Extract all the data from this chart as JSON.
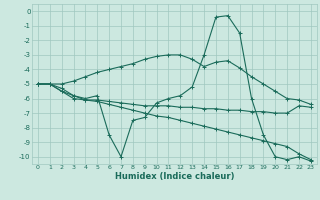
{
  "xlabel": "Humidex (Indice chaleur)",
  "background_color": "#cce8e0",
  "grid_color": "#a0c8c0",
  "line_color": "#1a6b5a",
  "xlim": [
    -0.5,
    23.5
  ],
  "ylim": [
    -10.5,
    0.5
  ],
  "xticks": [
    0,
    1,
    2,
    3,
    4,
    5,
    6,
    7,
    8,
    9,
    10,
    11,
    12,
    13,
    14,
    15,
    16,
    17,
    18,
    19,
    20,
    21,
    22,
    23
  ],
  "yticks": [
    0,
    -1,
    -2,
    -3,
    -4,
    -5,
    -6,
    -7,
    -8,
    -9,
    -10
  ],
  "series": [
    {
      "x": [
        0,
        1,
        2,
        3,
        4,
        5,
        6,
        7,
        8,
        9,
        10,
        11,
        12,
        13,
        14,
        15,
        16,
        17,
        18,
        19,
        20,
        21,
        22,
        23
      ],
      "y": [
        -5,
        -5,
        -5,
        -4.8,
        -4.5,
        -4.2,
        -4,
        -3.8,
        -3.6,
        -3.3,
        -3.1,
        -3,
        -3,
        -3.3,
        -3.8,
        -3.5,
        -3.4,
        -3.9,
        -4.5,
        -5,
        -5.5,
        -6,
        -6.1,
        -6.4
      ]
    },
    {
      "x": [
        0,
        1,
        2,
        3,
        4,
        5,
        6,
        7,
        8,
        9,
        10,
        11,
        12,
        13,
        14,
        15,
        16,
        17,
        18,
        19,
        20,
        21,
        22,
        23
      ],
      "y": [
        -5,
        -5,
        -5.5,
        -5.8,
        -6,
        -5.8,
        -8.5,
        -10,
        -7.5,
        -7.3,
        -6.3,
        -6,
        -5.8,
        -5.2,
        -3,
        -0.4,
        -0.3,
        -1.5,
        -6,
        -8.5,
        -10,
        -10.2,
        -10,
        -10.3
      ]
    },
    {
      "x": [
        0,
        1,
        2,
        3,
        4,
        5,
        6,
        7,
        8,
        9,
        10,
        11,
        12,
        13,
        14,
        15,
        16,
        17,
        18,
        19,
        20,
        21,
        22,
        23
      ],
      "y": [
        -5,
        -5,
        -5.5,
        -6,
        -6.1,
        -6.1,
        -6.2,
        -6.3,
        -6.4,
        -6.5,
        -6.5,
        -6.5,
        -6.6,
        -6.6,
        -6.7,
        -6.7,
        -6.8,
        -6.8,
        -6.9,
        -6.9,
        -7,
        -7,
        -6.5,
        -6.6
      ]
    },
    {
      "x": [
        0,
        1,
        2,
        3,
        4,
        5,
        6,
        7,
        8,
        9,
        10,
        11,
        12,
        13,
        14,
        15,
        16,
        17,
        18,
        19,
        20,
        21,
        22,
        23
      ],
      "y": [
        -5,
        -5,
        -5.3,
        -5.8,
        -6.1,
        -6.2,
        -6.4,
        -6.6,
        -6.8,
        -7,
        -7.2,
        -7.3,
        -7.5,
        -7.7,
        -7.9,
        -8.1,
        -8.3,
        -8.5,
        -8.7,
        -8.9,
        -9.1,
        -9.3,
        -9.8,
        -10.2
      ]
    }
  ]
}
